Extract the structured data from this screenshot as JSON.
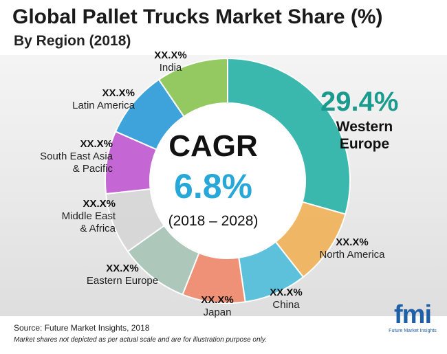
{
  "title": "Global Pallet Trucks Market Share (%)",
  "subtitle": "By Region (2018)",
  "chart_data": {
    "type": "pie",
    "title": "Global Pallet Trucks Market Share (%)",
    "subtitle": "By Region (2018)",
    "categories": [
      "Western Europe",
      "North America",
      "China",
      "Japan",
      "Eastern Europe",
      "Middle East & Africa",
      "South East Asia & Pacific",
      "Latin America",
      "India"
    ],
    "values": [
      29.4,
      10.0,
      8.3,
      8.3,
      9.2,
      8.1,
      8.3,
      8.9,
      9.5
    ],
    "value_labels": [
      "29.4%",
      "XX.X%",
      "XX.X%",
      "XX.X%",
      "XX.X%",
      "XX.X%",
      "XX.X%",
      "XX.X%",
      "XX.X%"
    ],
    "colors": [
      "#2bb3a8",
      "#f0b35a",
      "#52bedb",
      "#f08a6e",
      "#a8c5b7",
      "#d6d6d6",
      "#c05ad0",
      "#2f9bd9",
      "#8cc556"
    ],
    "donut": true,
    "center_text": {
      "label": "CAGR",
      "value": "6.8%",
      "period": "(2018 – 2028)"
    }
  },
  "labels": {
    "western_europe": {
      "value": "29.4%",
      "name": "Western Europe"
    },
    "north_america": {
      "value": "XX.X%",
      "name": "North America"
    },
    "china": {
      "value": "XX.X%",
      "name": "China"
    },
    "japan": {
      "value": "XX.X%",
      "name": "Japan"
    },
    "eastern_europe": {
      "value": "XX.X%",
      "name": "Eastern Europe"
    },
    "middle_east": {
      "value": "XX.X%",
      "name_line1": "Middle East",
      "name_line2": "& Africa"
    },
    "sea_pacific": {
      "value": "XX.X%",
      "name_line1": "South East Asia",
      "name_line2": "& Pacific"
    },
    "latin_america": {
      "value": "XX.X%",
      "name": "Latin America"
    },
    "india": {
      "value": "XX.X%",
      "name": "India"
    }
  },
  "source": "Source: Future Market Insights, 2018",
  "note": "Market shares not depicted as per actual scale and are for illustration purpose only.",
  "logo": {
    "mark": "fmi",
    "tagline": "Future Market Insights"
  }
}
